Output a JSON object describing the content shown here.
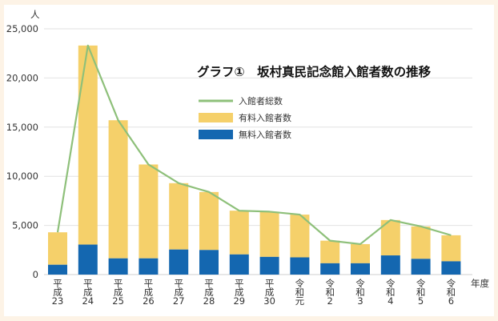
{
  "chart_data": {
    "type": "bar",
    "stacked": true,
    "title": "グラフ①　坂村真民記念館入館者数の推移",
    "ylabel": "人",
    "xlabel": "年度",
    "ylim": [
      0,
      25000
    ],
    "yticks": [
      "0",
      "5,000",
      "10,000",
      "15,000",
      "20,000",
      "25,000"
    ],
    "ytick_values": [
      0,
      5000,
      10000,
      15000,
      20000,
      25000
    ],
    "grid": true,
    "legend_position": "top-right",
    "categories": [
      [
        "平",
        "成",
        "23"
      ],
      [
        "平",
        "成",
        "24"
      ],
      [
        "平",
        "成",
        "25"
      ],
      [
        "平",
        "成",
        "26"
      ],
      [
        "平",
        "成",
        "27"
      ],
      [
        "平",
        "成",
        "28"
      ],
      [
        "平",
        "成",
        "29"
      ],
      [
        "平",
        "成",
        "30"
      ],
      [
        "令",
        "和",
        "元"
      ],
      [
        "令",
        "和",
        "2"
      ],
      [
        "令",
        "和",
        "3"
      ],
      [
        "令",
        "和",
        "4"
      ],
      [
        "令",
        "和",
        "5"
      ],
      [
        "令",
        "和",
        "6"
      ]
    ],
    "series": [
      {
        "name": "無料入館者数",
        "type": "bar",
        "color": "#1467b0",
        "values": [
          1000,
          3050,
          1650,
          1650,
          2550,
          2500,
          2050,
          1800,
          1750,
          1150,
          1150,
          1950,
          1600,
          1350
        ]
      },
      {
        "name": "有料入館者数",
        "type": "bar",
        "color": "#f5d06a",
        "values": [
          3300,
          20250,
          14050,
          9550,
          6750,
          5900,
          4450,
          4600,
          4350,
          2300,
          1950,
          3600,
          3300,
          2650
        ]
      },
      {
        "name": "入館者総数",
        "type": "line",
        "color": "#8ec07a",
        "values": [
          4300,
          23300,
          15700,
          11200,
          9300,
          8400,
          6500,
          6400,
          6100,
          3450,
          3100,
          5550,
          4900,
          4000
        ]
      }
    ],
    "legend": [
      {
        "label": "入館者総数",
        "color": "#8ec07a",
        "kind": "line"
      },
      {
        "label": "有料入館者数",
        "color": "#f5d06a",
        "kind": "box"
      },
      {
        "label": "無料入館者数",
        "color": "#1467b0",
        "kind": "box"
      }
    ]
  }
}
